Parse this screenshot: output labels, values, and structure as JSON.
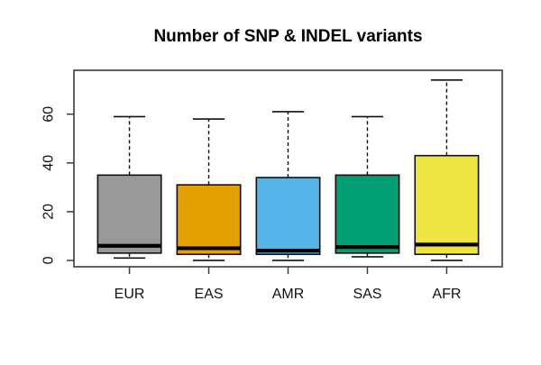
{
  "page": {
    "background_color": "#ffffff"
  },
  "chart_data": {
    "type": "boxplot",
    "title": "Number of SNP & INDEL variants",
    "categories": [
      "EUR",
      "EAS",
      "AMR",
      "SAS",
      "AFR"
    ],
    "series": [
      {
        "name": "EUR",
        "min": 1,
        "q1": 3,
        "median": 6,
        "q3": 35,
        "max": 59,
        "color": "#999999"
      },
      {
        "name": "EAS",
        "min": 0,
        "q1": 2.5,
        "median": 5,
        "q3": 31,
        "max": 58,
        "color": "#E69F00"
      },
      {
        "name": "AMR",
        "min": 0,
        "q1": 2.5,
        "median": 4,
        "q3": 34,
        "max": 61,
        "color": "#56B4E9"
      },
      {
        "name": "SAS",
        "min": 1.5,
        "q1": 3,
        "median": 5.5,
        "q3": 35,
        "max": 59,
        "color": "#009E73"
      },
      {
        "name": "AFR",
        "min": 0,
        "q1": 2.5,
        "median": 6.5,
        "q3": 43,
        "max": 74,
        "color": "#F0E442"
      }
    ],
    "yticks": [
      0,
      20,
      40,
      60
    ],
    "ylim": [
      -2.6,
      78
    ],
    "xlabel": "",
    "ylabel": "",
    "grid": false,
    "legend": null,
    "frame_color": "#3c3c3c",
    "box_stroke_color": "#111111",
    "median_color": "#000000",
    "text_color": "#111111"
  }
}
